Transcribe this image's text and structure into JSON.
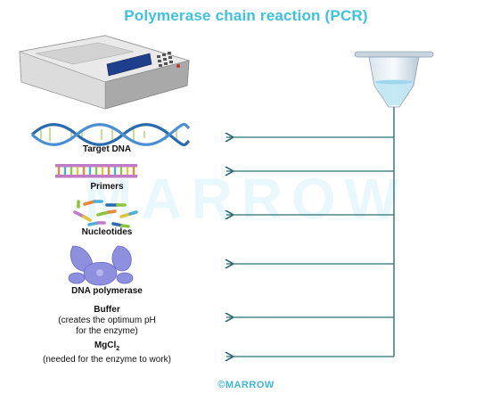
{
  "title": "Polymerase chain reaction (PCR)",
  "watermark": "MARROW",
  "components": [
    {
      "name": "Target DNA"
    },
    {
      "name": "Primers"
    },
    {
      "name": "Nucleotides"
    },
    {
      "name": "DNA polymerase"
    },
    {
      "name": "Buffer",
      "note": "(creates the optimum pH\nfor the enzyme)"
    },
    {
      "name": "MgCl",
      "subscript": "2",
      "note": "(needed for the enzyme to work)"
    }
  ],
  "footer": "©MARROW",
  "icons": [
    "thermal-cycler-icon",
    "pcr-tube-icon",
    "dna-helix-icon",
    "primers-icon",
    "nucleotides-icon",
    "dna-polymerase-icon"
  ],
  "colors": {
    "title": "#3fc2de",
    "arrows": "#2f6f73",
    "dna_blue": "#2a6bb0",
    "polymerase": "#8f8fe0"
  }
}
